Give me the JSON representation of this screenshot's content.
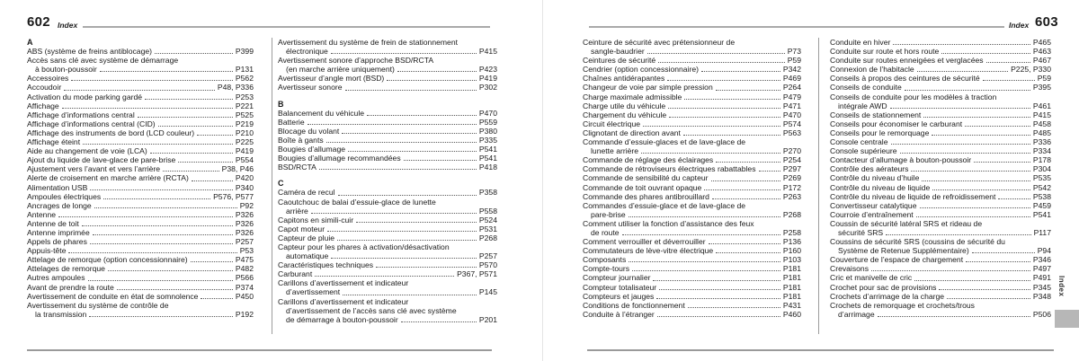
{
  "left_page": {
    "page_number": "602",
    "header_label": "Index",
    "columns": [
      [
        {
          "letter": "A",
          "entries": [
            {
              "l": [
                "ABS (système de freins antiblocage)"
              ],
              "p": "P399"
            },
            {
              "l": [
                "Accès sans clé avec système de démarrage",
                "à bouton-poussoir"
              ],
              "p": "P131"
            },
            {
              "l": [
                "Accessoires"
              ],
              "p": "P562"
            },
            {
              "l": [
                "Accoudoir"
              ],
              "p": "P48, P336"
            },
            {
              "l": [
                "Activation du mode parking gardé"
              ],
              "p": "P253"
            },
            {
              "l": [
                "Affichage"
              ],
              "p": "P221"
            },
            {
              "l": [
                "Affichage d’informations central"
              ],
              "p": "P525"
            },
            {
              "l": [
                "Affichage d’informations central (CID)"
              ],
              "p": "P219"
            },
            {
              "l": [
                "Affichage des instruments de bord (LCD couleur)"
              ],
              "p": "P210"
            },
            {
              "l": [
                "Affichage éteint"
              ],
              "p": "P225"
            },
            {
              "l": [
                "Aide au changement de voie (LCA)"
              ],
              "p": "P419"
            },
            {
              "l": [
                "Ajout du liquide de lave-glace de pare-brise"
              ],
              "p": "P554"
            },
            {
              "l": [
                "Ajustement vers l’avant et vers l’arrière"
              ],
              "p": "P38, P46"
            },
            {
              "l": [
                "Alerte de croisement en marche arrière (RCTA)"
              ],
              "p": "P420"
            },
            {
              "l": [
                "Alimentation USB"
              ],
              "p": "P340"
            },
            {
              "l": [
                "Ampoules électriques"
              ],
              "p": "P576, P577"
            },
            {
              "l": [
                "Ancrages de longe"
              ],
              "p": "P92"
            },
            {
              "l": [
                "Antenne"
              ],
              "p": "P326"
            },
            {
              "l": [
                "Antenne de toit"
              ],
              "p": "P326"
            },
            {
              "l": [
                "Antenne imprimée"
              ],
              "p": "P326"
            },
            {
              "l": [
                "Appels de phares"
              ],
              "p": "P257"
            },
            {
              "l": [
                "Appuis-tête"
              ],
              "p": "P53"
            },
            {
              "l": [
                "Attelage de remorque (option concessionnaire)"
              ],
              "p": "P475"
            },
            {
              "l": [
                "Attelages de remorque"
              ],
              "p": "P482"
            },
            {
              "l": [
                "Autres ampoules"
              ],
              "p": "P566"
            },
            {
              "l": [
                "Avant de prendre la route"
              ],
              "p": "P374"
            },
            {
              "l": [
                "Avertissement de conduite en état de somnolence"
              ],
              "p": "P450"
            },
            {
              "l": [
                "Avertissement du système de contrôle de",
                "la transmission"
              ],
              "p": "P192"
            }
          ]
        }
      ],
      [
        {
          "letter": "",
          "entries": [
            {
              "l": [
                "Avertissement du système de frein de stationnement",
                "électronique"
              ],
              "p": "P415"
            },
            {
              "l": [
                "Avertissement sonore d’approche BSD/RCTA",
                "(en marche arrière uniquement)"
              ],
              "p": "P423"
            },
            {
              "l": [
                "Avertisseur d’angle mort (BSD)"
              ],
              "p": "P419"
            },
            {
              "l": [
                "Avertisseur sonore"
              ],
              "p": "P302"
            }
          ]
        },
        {
          "letter": "B",
          "entries": [
            {
              "l": [
                "Balancement du véhicule"
              ],
              "p": "P470"
            },
            {
              "l": [
                "Batterie"
              ],
              "p": "P559"
            },
            {
              "l": [
                "Blocage du volant"
              ],
              "p": "P380"
            },
            {
              "l": [
                "Boîte à gants"
              ],
              "p": "P335"
            },
            {
              "l": [
                "Bougies d’allumage"
              ],
              "p": "P541"
            },
            {
              "l": [
                "Bougies d’allumage recommandées"
              ],
              "p": "P541"
            },
            {
              "l": [
                "BSD/RCTA"
              ],
              "p": "P418"
            }
          ]
        },
        {
          "letter": "C",
          "entries": [
            {
              "l": [
                "Caméra de recul"
              ],
              "p": "P358"
            },
            {
              "l": [
                "Caoutchouc de balai d’essuie-glace de lunette",
                "arrière"
              ],
              "p": "P558"
            },
            {
              "l": [
                "Capitons en simili-cuir"
              ],
              "p": "P524"
            },
            {
              "l": [
                "Capot moteur"
              ],
              "p": "P531"
            },
            {
              "l": [
                "Capteur de pluie"
              ],
              "p": "P268"
            },
            {
              "l": [
                "Capteur pour les phares à activation/désactivation",
                "automatique"
              ],
              "p": "P257"
            },
            {
              "l": [
                "Caractéristiques techniques"
              ],
              "p": "P570"
            },
            {
              "l": [
                "Carburant"
              ],
              "p": "P367, P571"
            },
            {
              "l": [
                "Carillons d’avertissement et indicateur",
                "d’avertissement"
              ],
              "p": "P145"
            },
            {
              "l": [
                "Carillons d’avertissement et indicateur",
                "d’avertissement de l’accès sans clé avec système",
                "de démarrage à bouton-poussoir"
              ],
              "p": "P201"
            }
          ]
        }
      ]
    ]
  },
  "right_page": {
    "page_number": "603",
    "header_label": "Index",
    "columns": [
      [
        {
          "letter": "",
          "entries": [
            {
              "l": [
                "Ceinture de sécurité avec prétensionneur de",
                "sangle-baudrier"
              ],
              "p": "P73"
            },
            {
              "l": [
                "Ceintures de sécurité"
              ],
              "p": "P59"
            },
            {
              "l": [
                "Cendrier (option concessionnaire)"
              ],
              "p": "P342"
            },
            {
              "l": [
                "Chaînes antidérapantes"
              ],
              "p": "P469"
            },
            {
              "l": [
                "Changeur de voie par simple pression"
              ],
              "p": "P264"
            },
            {
              "l": [
                "Charge maximale admissible"
              ],
              "p": "P479"
            },
            {
              "l": [
                "Charge utile du véhicule"
              ],
              "p": "P471"
            },
            {
              "l": [
                "Chargement du véhicule"
              ],
              "p": "P470"
            },
            {
              "l": [
                "Circuit électrique"
              ],
              "p": "P574"
            },
            {
              "l": [
                "Clignotant de direction avant"
              ],
              "p": "P563"
            },
            {
              "l": [
                "Commande d’essuie-glaces et de lave-glace de",
                "lunette arrière"
              ],
              "p": "P270"
            },
            {
              "l": [
                "Commande de réglage des éclairages"
              ],
              "p": "P254"
            },
            {
              "l": [
                "Commande de rétroviseurs électriques rabattables"
              ],
              "p": "P297"
            },
            {
              "l": [
                "Commande de sensibilité du capteur"
              ],
              "p": "P269"
            },
            {
              "l": [
                "Commande de toit ouvrant opaque"
              ],
              "p": "P172"
            },
            {
              "l": [
                "Commande des phares antibrouillard"
              ],
              "p": "P263"
            },
            {
              "l": [
                "Commandes d’essuie-glace et de lave-glace de",
                "pare-brise"
              ],
              "p": "P268"
            },
            {
              "l": [
                "Comment utiliser la fonction d’assistance des feux",
                "de route"
              ],
              "p": "P258"
            },
            {
              "l": [
                "Comment verrouiller et déverrouiller"
              ],
              "p": "P136"
            },
            {
              "l": [
                "Commutateurs de lève-vitre électrique"
              ],
              "p": "P160"
            },
            {
              "l": [
                "Composants"
              ],
              "p": "P103"
            },
            {
              "l": [
                "Compte-tours"
              ],
              "p": "P181"
            },
            {
              "l": [
                "Compteur journalier"
              ],
              "p": "P181"
            },
            {
              "l": [
                "Compteur totalisateur"
              ],
              "p": "P181"
            },
            {
              "l": [
                "Compteurs et jauges"
              ],
              "p": "P181"
            },
            {
              "l": [
                "Conditions de fonctionnement"
              ],
              "p": "P431"
            },
            {
              "l": [
                "Conduite à l’étranger"
              ],
              "p": "P460"
            }
          ]
        }
      ],
      [
        {
          "letter": "",
          "entries": [
            {
              "l": [
                "Conduite en hiver"
              ],
              "p": "P465"
            },
            {
              "l": [
                "Conduite sur route et hors route"
              ],
              "p": "P463"
            },
            {
              "l": [
                "Conduite sur routes enneigées et verglacées"
              ],
              "p": "P467"
            },
            {
              "l": [
                "Connexion de l’habitacle"
              ],
              "p": "P225, P330"
            },
            {
              "l": [
                "Conseils à propos des ceintures de sécurité"
              ],
              "p": "P59"
            },
            {
              "l": [
                "Conseils de conduite"
              ],
              "p": "P395"
            },
            {
              "l": [
                "Conseils de conduite pour les modèles à traction",
                "intégrale AWD"
              ],
              "p": "P461"
            },
            {
              "l": [
                "Conseils de stationnement"
              ],
              "p": "P415"
            },
            {
              "l": [
                "Conseils pour économiser le carburant"
              ],
              "p": "P458"
            },
            {
              "l": [
                "Conseils pour le remorquage"
              ],
              "p": "P485"
            },
            {
              "l": [
                "Console centrale"
              ],
              "p": "P336"
            },
            {
              "l": [
                "Console supérieure"
              ],
              "p": "P334"
            },
            {
              "l": [
                "Contacteur d’allumage à bouton-poussoir"
              ],
              "p": "P178"
            },
            {
              "l": [
                "Contrôle des aérateurs"
              ],
              "p": "P304"
            },
            {
              "l": [
                "Contrôle du niveau d’huile"
              ],
              "p": "P535"
            },
            {
              "l": [
                "Contrôle du niveau de liquide"
              ],
              "p": "P542"
            },
            {
              "l": [
                "Contrôle du niveau de liquide de refroidissement"
              ],
              "p": "P538"
            },
            {
              "l": [
                "Convertisseur catalytique"
              ],
              "p": "P459"
            },
            {
              "l": [
                "Courroie d’entraînement"
              ],
              "p": "P541"
            },
            {
              "l": [
                "Coussin de sécurité latéral SRS et rideau de",
                "sécurité SRS"
              ],
              "p": "P117"
            },
            {
              "l": [
                "Coussins de sécurité SRS (coussins de sécurité du",
                "Système de Retenue Supplémentaire)"
              ],
              "p": "P94"
            },
            {
              "l": [
                "Couverture de l’espace de chargement"
              ],
              "p": "P346"
            },
            {
              "l": [
                "Crevaisons"
              ],
              "p": "P497"
            },
            {
              "l": [
                "Cric et manivelle de cric"
              ],
              "p": "P491"
            },
            {
              "l": [
                "Crochet pour sac de provisions"
              ],
              "p": "P345"
            },
            {
              "l": [
                "Crochets d’arrimage de la charge"
              ],
              "p": "P348"
            },
            {
              "l": [
                "Crochets de remorquage et crochets/trous",
                "d’arrimage"
              ],
              "p": "P506"
            }
          ]
        }
      ]
    ]
  },
  "side_tab": {
    "label": "Index"
  }
}
